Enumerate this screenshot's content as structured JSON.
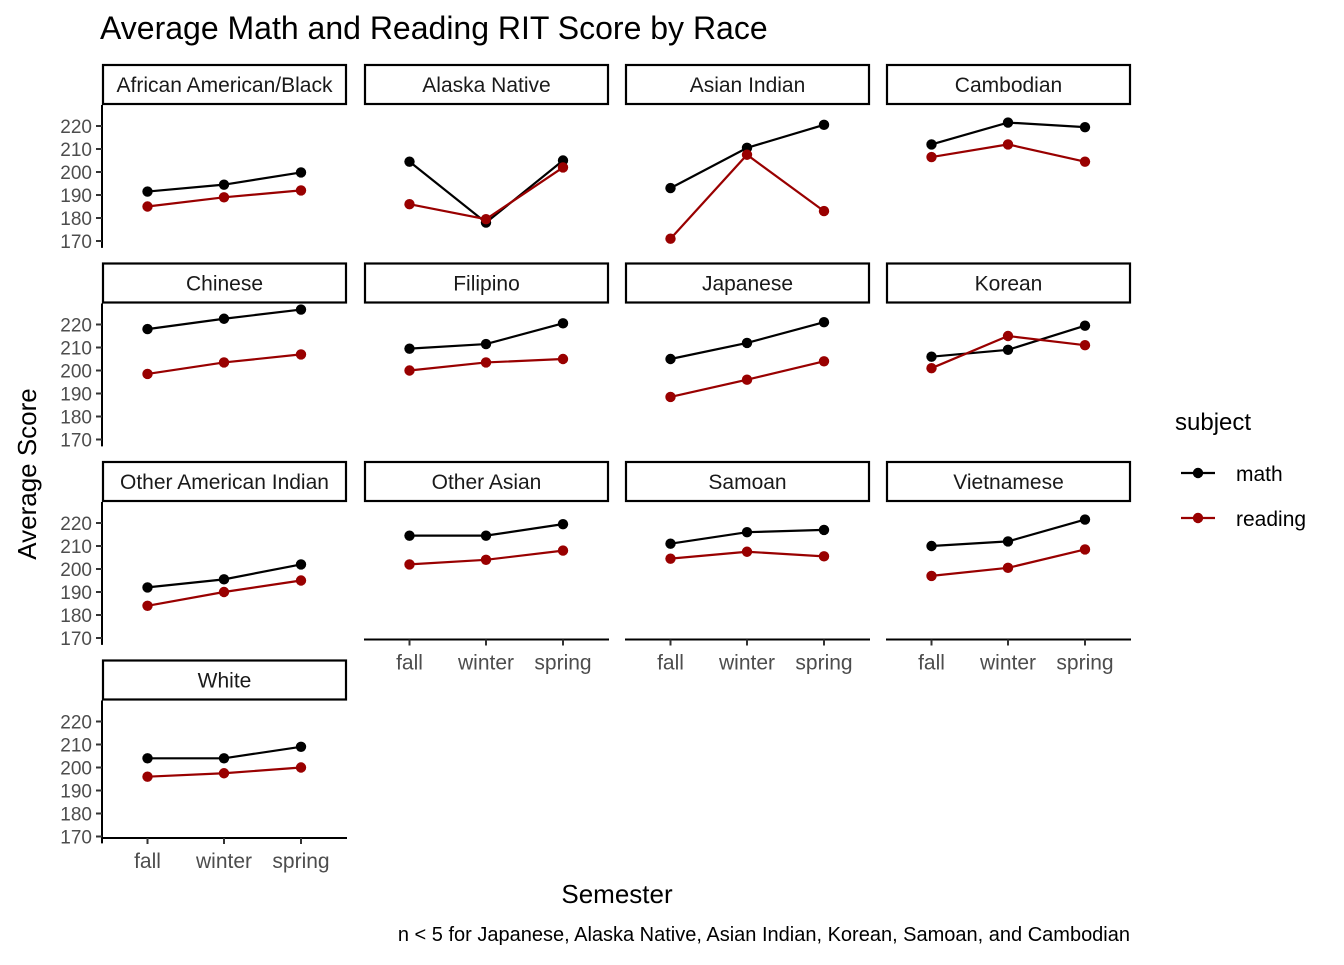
{
  "chart_data": {
    "type": "line",
    "title": "Average Math and Reading RIT Score by Race",
    "xlabel": "Semester",
    "ylabel": "Average Score",
    "caption": "n < 5 for Japanese, Alaska Native, Asian Indian, Korean, Samoan, and Cambodian",
    "categories": [
      "fall",
      "winter",
      "spring"
    ],
    "ylim": [
      167,
      229
    ],
    "yticks": [
      170,
      180,
      190,
      200,
      210,
      220
    ],
    "grid": false,
    "legend": {
      "title": "subject",
      "position": "right",
      "entries": [
        {
          "name": "math",
          "color": "#000000"
        },
        {
          "name": "reading",
          "color": "#990000"
        }
      ]
    },
    "facets": [
      {
        "label": "African American/Black",
        "series": [
          {
            "name": "math",
            "values": [
              191.5,
              194.5,
              199.8
            ]
          },
          {
            "name": "reading",
            "values": [
              185,
              189,
              192
            ]
          }
        ]
      },
      {
        "label": "Alaska Native",
        "series": [
          {
            "name": "math",
            "values": [
              204.5,
              178,
              205
            ]
          },
          {
            "name": "reading",
            "values": [
              186,
              179.5,
              202
            ]
          }
        ]
      },
      {
        "label": "Asian Indian",
        "series": [
          {
            "name": "math",
            "values": [
              193,
              210.5,
              220.5
            ]
          },
          {
            "name": "reading",
            "values": [
              171,
              207.5,
              183
            ]
          }
        ]
      },
      {
        "label": "Cambodian",
        "series": [
          {
            "name": "math",
            "values": [
              212,
              221.5,
              219.5
            ]
          },
          {
            "name": "reading",
            "values": [
              206.5,
              212,
              204.5
            ]
          }
        ]
      },
      {
        "label": "Chinese",
        "series": [
          {
            "name": "math",
            "values": [
              218,
              222.5,
              226.5
            ]
          },
          {
            "name": "reading",
            "values": [
              198.5,
              203.5,
              207
            ]
          }
        ]
      },
      {
        "label": "Filipino",
        "series": [
          {
            "name": "math",
            "values": [
              209.5,
              211.5,
              220.5
            ]
          },
          {
            "name": "reading",
            "values": [
              200,
              203.5,
              205
            ]
          }
        ]
      },
      {
        "label": "Japanese",
        "series": [
          {
            "name": "math",
            "values": [
              205,
              212,
              221
            ]
          },
          {
            "name": "reading",
            "values": [
              188.5,
              196,
              204
            ]
          }
        ]
      },
      {
        "label": "Korean",
        "series": [
          {
            "name": "math",
            "values": [
              206,
              209,
              219.5
            ]
          },
          {
            "name": "reading",
            "values": [
              201,
              215,
              211
            ]
          }
        ]
      },
      {
        "label": "Other American Indian",
        "series": [
          {
            "name": "math",
            "values": [
              192,
              195.5,
              202
            ]
          },
          {
            "name": "reading",
            "values": [
              184,
              190,
              195
            ]
          }
        ]
      },
      {
        "label": "Other Asian",
        "series": [
          {
            "name": "math",
            "values": [
              214.5,
              214.5,
              219.5
            ]
          },
          {
            "name": "reading",
            "values": [
              202,
              204,
              208
            ]
          }
        ]
      },
      {
        "label": "Samoan",
        "series": [
          {
            "name": "math",
            "values": [
              211,
              216,
              217
            ]
          },
          {
            "name": "reading",
            "values": [
              204.5,
              207.5,
              205.5
            ]
          }
        ]
      },
      {
        "label": "Vietnamese",
        "series": [
          {
            "name": "math",
            "values": [
              210,
              212,
              221.5
            ]
          },
          {
            "name": "reading",
            "values": [
              197,
              200.5,
              208.5
            ]
          }
        ]
      },
      {
        "label": "White",
        "series": [
          {
            "name": "math",
            "values": [
              204,
              204,
              209
            ]
          },
          {
            "name": "reading",
            "values": [
              196,
              197.5,
              200
            ]
          }
        ]
      }
    ]
  }
}
